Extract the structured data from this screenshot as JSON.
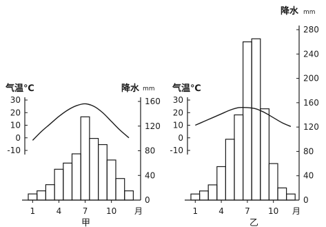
{
  "chart_data": [
    {
      "type": "bar",
      "title": "",
      "label": "甲",
      "x": [
        1,
        2,
        3,
        4,
        5,
        6,
        7,
        8,
        9,
        10,
        11,
        12
      ],
      "xticks": [
        "1",
        "4",
        "7",
        "10"
      ],
      "xlabel": "月",
      "temperature_axis": {
        "label": "气温℃",
        "ticks": [
          "30",
          "20",
          "10",
          "0",
          "-10"
        ],
        "range": [
          -10,
          30
        ]
      },
      "precipitation_axis": {
        "label": "降水",
        "unit": "mm",
        "ticks": [
          "160",
          "120",
          "80",
          "40",
          "0"
        ],
        "range": [
          0,
          160
        ]
      },
      "precipitation": [
        10,
        15,
        25,
        50,
        60,
        75,
        135,
        100,
        90,
        65,
        35,
        15
      ],
      "temperature": [
        -2,
        5,
        11,
        17,
        22,
        25.5,
        27,
        25,
        20,
        13,
        6,
        0
      ]
    },
    {
      "type": "bar",
      "title": "",
      "label": "乙",
      "x": [
        1,
        2,
        3,
        4,
        5,
        6,
        7,
        8,
        9,
        10,
        11,
        12
      ],
      "xticks": [
        "1",
        "4",
        "7",
        "10"
      ],
      "xlabel": "月",
      "temperature_axis": {
        "label": "气温℃",
        "ticks": [
          "30",
          "20",
          "10",
          "0",
          "-10"
        ],
        "range": [
          -10,
          30
        ]
      },
      "precipitation_axis": {
        "label": "降水",
        "unit": "mm",
        "ticks": [
          "280",
          "240",
          "200",
          "160",
          "120",
          "80",
          "40",
          "0"
        ],
        "range": [
          0,
          280
        ]
      },
      "precipitation": [
        10,
        15,
        25,
        55,
        100,
        140,
        260,
        265,
        150,
        60,
        20,
        10
      ],
      "temperature": [
        10,
        13,
        16,
        19,
        22,
        24,
        24,
        23,
        20,
        16,
        12,
        9
      ]
    }
  ]
}
